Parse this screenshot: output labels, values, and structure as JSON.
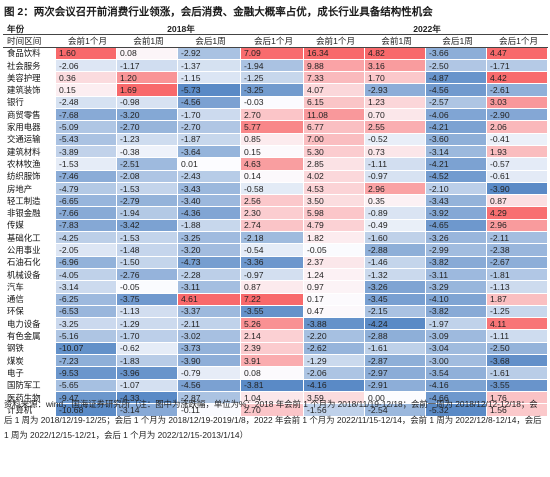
{
  "title": "图 2：两次会议召开前消费行业领涨，会后消费、金融大概率占优，成长行业具备结构性机会",
  "header": {
    "year_label": "年份",
    "period_label": "时间区间",
    "year1": "2018年",
    "year2": "2022年",
    "periods": [
      "会前1个月",
      "会前1周",
      "会后1周",
      "会后1个月"
    ]
  },
  "colors": {
    "pos": "#f8696b",
    "neg": "#5a8ac6",
    "neutral": "#fcfcff"
  },
  "rows": [
    {
      "name": "食品饮料",
      "values": [
        "1.60",
        "0.08",
        "-2.92",
        "7.09",
        "16.34",
        "4.82",
        "-3.66",
        "4.47"
      ]
    },
    {
      "name": "社会服务",
      "values": [
        "-2.06",
        "-1.17",
        "-1.37",
        "-1.94",
        "9.88",
        "3.16",
        "-2.50",
        "-1.71"
      ]
    },
    {
      "name": "美容护理",
      "values": [
        "0.36",
        "1.20",
        "-1.15",
        "-1.25",
        "7.33",
        "1.70",
        "-4.87",
        "4.42"
      ]
    },
    {
      "name": "建筑装饰",
      "values": [
        "0.15",
        "1.69",
        "-5.73",
        "-3.25",
        "4.07",
        "-2.93",
        "-4.56",
        "-2.61"
      ]
    },
    {
      "name": "银行",
      "values": [
        "-2.48",
        "-0.98",
        "-4.56",
        "-0.03",
        "6.15",
        "1.23",
        "-2.57",
        "3.03"
      ]
    },
    {
      "name": "商贸零售",
      "values": [
        "-7.68",
        "-3.20",
        "-1.70",
        "2.70",
        "11.08",
        "0.70",
        "-4.06",
        "-2.90"
      ]
    },
    {
      "name": "家用电器",
      "values": [
        "-5.09",
        "-2.70",
        "-2.70",
        "5.77",
        "6.77",
        "2.55",
        "-4.21",
        "2.06"
      ]
    },
    {
      "name": "交通运输",
      "values": [
        "-5.43",
        "-1.23",
        "-1.87",
        "0.85",
        "7.00",
        "-0.52",
        "-3.60",
        "-0.41"
      ]
    },
    {
      "name": "建筑材料",
      "values": [
        "-3.89",
        "-0.38",
        "-3.64",
        "0.15",
        "5.30",
        "0.73",
        "-3.14",
        "1.93"
      ]
    },
    {
      "name": "农林牧渔",
      "values": [
        "-1.53",
        "-2.51",
        "0.01",
        "4.63",
        "2.85",
        "-1.11",
        "-4.21",
        "-0.57"
      ]
    },
    {
      "name": "纺织服饰",
      "values": [
        "-7.46",
        "-2.08",
        "-2.43",
        "0.14",
        "4.02",
        "-0.97",
        "-4.52",
        "-0.61"
      ]
    },
    {
      "name": "房地产",
      "values": [
        "-4.79",
        "-1.53",
        "-3.43",
        "-0.58",
        "4.53",
        "2.96",
        "-2.10",
        "-3.90"
      ]
    },
    {
      "name": "轻工制造",
      "values": [
        "-6.65",
        "-2.79",
        "-3.40",
        "2.56",
        "3.50",
        "0.35",
        "-3.43",
        "0.87"
      ]
    },
    {
      "name": "非银金融",
      "values": [
        "-7.66",
        "-1.94",
        "-4.36",
        "2.30",
        "5.98",
        "-0.89",
        "-3.92",
        "4.29"
      ]
    },
    {
      "name": "传媒",
      "values": [
        "-7.83",
        "-3.42",
        "-1.88",
        "2.74",
        "4.79",
        "-0.49",
        "-4.65",
        "2.96"
      ]
    },
    {
      "name": "基础化工",
      "values": [
        "-4.25",
        "-1.53",
        "-3.25",
        "-2.18",
        "1.82",
        "-1.60",
        "-3.26",
        "-2.11"
      ]
    },
    {
      "name": "公用事业",
      "values": [
        "-2.05",
        "-1.48",
        "-3.20",
        "-0.54",
        "-0.05",
        "-2.88",
        "-2.99",
        "-2.38"
      ]
    },
    {
      "name": "石油石化",
      "values": [
        "-6.96",
        "-1.50",
        "-4.73",
        "-3.36",
        "2.37",
        "-1.46",
        "-3.82",
        "-2.67"
      ]
    },
    {
      "name": "机械设备",
      "values": [
        "-4.05",
        "-2.76",
        "-2.28",
        "-0.97",
        "1.24",
        "-1.32",
        "-3.11",
        "-1.81"
      ]
    },
    {
      "name": "汽车",
      "values": [
        "-3.14",
        "-0.05",
        "-3.11",
        "0.87",
        "0.97",
        "-3.26",
        "-3.29",
        "-1.13"
      ]
    },
    {
      "name": "通信",
      "values": [
        "-6.25",
        "-3.75",
        "4.61",
        "7.22",
        "0.17",
        "-3.45",
        "-4.10",
        "1.87"
      ]
    },
    {
      "name": "环保",
      "values": [
        "-6.53",
        "-1.13",
        "-3.37",
        "-3.55",
        "0.47",
        "-2.15",
        "-3.82",
        "-1.25"
      ]
    },
    {
      "name": "电力设备",
      "values": [
        "-3.25",
        "-1.29",
        "-2.11",
        "5.26",
        "-3.88",
        "-4.24",
        "-1.97",
        "4.11"
      ]
    },
    {
      "name": "有色金属",
      "values": [
        "-5.16",
        "-1.70",
        "-3.02",
        "2.14",
        "-2.20",
        "-2.88",
        "-3.09",
        "-1.11"
      ]
    },
    {
      "name": "钢铁",
      "values": [
        "-10.07",
        "-0.62",
        "-3.73",
        "2.39",
        "-2.62",
        "-1.61",
        "-3.04",
        "-2.50"
      ]
    },
    {
      "name": "煤炭",
      "values": [
        "-7.23",
        "-1.83",
        "-3.90",
        "3.91",
        "-1.29",
        "-2.87",
        "-3.00",
        "-3.68"
      ]
    },
    {
      "name": "电子",
      "values": [
        "-9.53",
        "-3.96",
        "-0.79",
        "0.08",
        "-2.06",
        "-2.97",
        "-3.54",
        "-1.61"
      ]
    },
    {
      "name": "国防军工",
      "values": [
        "-5.65",
        "-1.07",
        "-4.56",
        "-3.81",
        "-4.16",
        "-2.91",
        "-4.16",
        "-3.55"
      ]
    },
    {
      "name": "医药生物",
      "values": [
        "-9.47",
        "-4.33",
        "-2.87",
        "1.04",
        "3.59",
        "0.00",
        "-4.66",
        "1.76"
      ]
    },
    {
      "name": "计算机",
      "values": [
        "-10.68",
        "-3.14",
        "-0.11",
        "2.70",
        "-1.56",
        "-2.54",
        "-5.32",
        "1.56"
      ]
    }
  ],
  "footer": "资料来源：wind，国海证券研究所（注：图中为涨跌幅，单位为%；2018 年会前 1 个月为 2018/11/19-12/18；会前一周为 2018/12/12-12/18；会后 1 周为 2018/12/19-12/25；会后 1 个月为 2018/12/19-2019/1/8，2022 年会前 1 个月为 2022/11/15-12/14，会前 1 周为 2022/12/8-12/14，会后 1 周为 2022/12/15-12/21，会后 1 个月为 2022/12/15-2013/1/14）"
}
